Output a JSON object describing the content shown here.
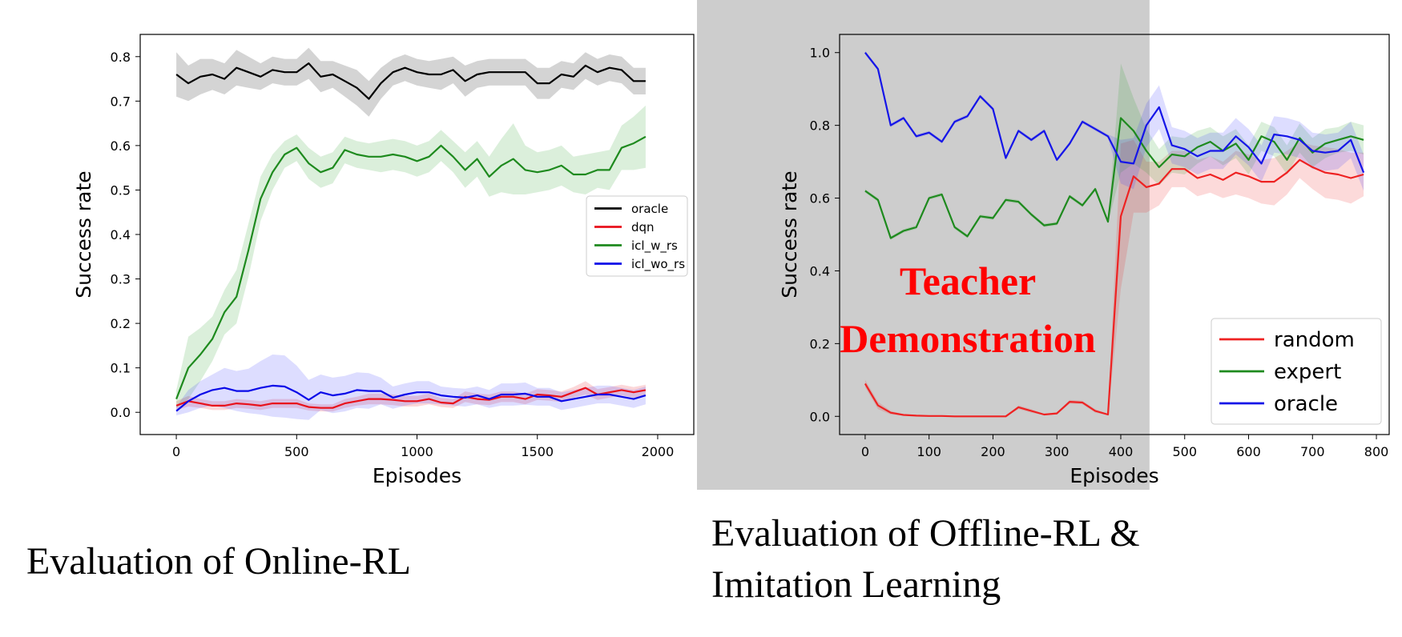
{
  "captions": {
    "left": "Evaluation of Online-RL",
    "right_line1": "Evaluation of Offline-RL &",
    "right_line2": "Imitation Learning"
  },
  "chart_data": [
    {
      "type": "line",
      "title": "",
      "xlabel": "Episodes",
      "ylabel": "Success rate",
      "xlim": [
        -150,
        2150
      ],
      "ylim": [
        -0.05,
        0.85
      ],
      "xticks": [
        0,
        500,
        1000,
        1500,
        2000
      ],
      "yticks": [
        0.0,
        0.1,
        0.2,
        0.3,
        0.4,
        0.5,
        0.6,
        0.7,
        0.8
      ],
      "tick_decimals": 1,
      "grid": false,
      "legend": "center-right",
      "legend_font_size": 15,
      "x": [
        0,
        50,
        100,
        150,
        200,
        250,
        300,
        350,
        400,
        450,
        500,
        550,
        600,
        650,
        700,
        750,
        800,
        850,
        900,
        950,
        1000,
        1050,
        1100,
        1150,
        1200,
        1250,
        1300,
        1350,
        1400,
        1450,
        1500,
        1550,
        1600,
        1650,
        1700,
        1750,
        1800,
        1850,
        1900,
        1950
      ],
      "series": [
        {
          "name": "oracle",
          "color": "#000000",
          "band_color": "#000000",
          "values": [
            0.76,
            0.74,
            0.755,
            0.76,
            0.75,
            0.775,
            0.765,
            0.755,
            0.77,
            0.765,
            0.765,
            0.785,
            0.755,
            0.76,
            0.745,
            0.73,
            0.705,
            0.74,
            0.765,
            0.775,
            0.765,
            0.76,
            0.76,
            0.77,
            0.745,
            0.76,
            0.765,
            0.765,
            0.765,
            0.765,
            0.74,
            0.74,
            0.76,
            0.755,
            0.78,
            0.765,
            0.775,
            0.77,
            0.745,
            0.745
          ],
          "spread": [
            0.05,
            0.04,
            0.04,
            0.035,
            0.035,
            0.04,
            0.035,
            0.03,
            0.03,
            0.03,
            0.03,
            0.035,
            0.035,
            0.03,
            0.035,
            0.04,
            0.04,
            0.035,
            0.03,
            0.03,
            0.03,
            0.03,
            0.035,
            0.03,
            0.035,
            0.03,
            0.03,
            0.03,
            0.03,
            0.03,
            0.035,
            0.035,
            0.03,
            0.03,
            0.03,
            0.03,
            0.03,
            0.03,
            0.03,
            0.03
          ]
        },
        {
          "name": "dqn",
          "color": "#e8111b",
          "band_color": "#e8111b",
          "values": [
            0.015,
            0.025,
            0.02,
            0.015,
            0.015,
            0.02,
            0.018,
            0.015,
            0.02,
            0.02,
            0.02,
            0.012,
            0.01,
            0.01,
            0.02,
            0.025,
            0.03,
            0.03,
            0.028,
            0.025,
            0.025,
            0.03,
            0.022,
            0.02,
            0.035,
            0.03,
            0.028,
            0.035,
            0.035,
            0.03,
            0.04,
            0.038,
            0.035,
            0.045,
            0.055,
            0.04,
            0.045,
            0.05,
            0.045,
            0.05
          ],
          "spread": [
            0.01,
            0.012,
            0.01,
            0.01,
            0.01,
            0.01,
            0.01,
            0.01,
            0.01,
            0.01,
            0.01,
            0.008,
            0.008,
            0.008,
            0.01,
            0.01,
            0.012,
            0.012,
            0.012,
            0.012,
            0.012,
            0.012,
            0.01,
            0.01,
            0.012,
            0.012,
            0.012,
            0.012,
            0.012,
            0.012,
            0.012,
            0.012,
            0.012,
            0.012,
            0.015,
            0.012,
            0.012,
            0.012,
            0.012,
            0.012
          ]
        },
        {
          "name": "icl_w_rs",
          "color": "#1e8a1e",
          "band_color": "#2ca02c",
          "values": [
            0.03,
            0.1,
            0.13,
            0.165,
            0.225,
            0.26,
            0.365,
            0.48,
            0.54,
            0.58,
            0.595,
            0.56,
            0.54,
            0.55,
            0.59,
            0.58,
            0.575,
            0.575,
            0.58,
            0.575,
            0.565,
            0.575,
            0.6,
            0.575,
            0.545,
            0.57,
            0.53,
            0.555,
            0.57,
            0.545,
            0.54,
            0.545,
            0.555,
            0.535,
            0.535,
            0.545,
            0.545,
            0.595,
            0.605,
            0.62
          ],
          "spread": [
            0.02,
            0.07,
            0.06,
            0.05,
            0.05,
            0.06,
            0.06,
            0.05,
            0.04,
            0.03,
            0.03,
            0.035,
            0.035,
            0.035,
            0.03,
            0.03,
            0.03,
            0.035,
            0.035,
            0.035,
            0.035,
            0.035,
            0.035,
            0.035,
            0.04,
            0.04,
            0.045,
            0.06,
            0.08,
            0.055,
            0.045,
            0.045,
            0.045,
            0.04,
            0.045,
            0.04,
            0.045,
            0.05,
            0.06,
            0.07
          ]
        },
        {
          "name": "icl_wo_rs",
          "color": "#0a0ae8",
          "band_color": "#3333ff",
          "values": [
            0.003,
            0.025,
            0.04,
            0.05,
            0.055,
            0.048,
            0.048,
            0.055,
            0.06,
            0.058,
            0.045,
            0.028,
            0.045,
            0.038,
            0.042,
            0.05,
            0.048,
            0.048,
            0.033,
            0.04,
            0.045,
            0.045,
            0.038,
            0.035,
            0.033,
            0.038,
            0.03,
            0.04,
            0.04,
            0.042,
            0.035,
            0.035,
            0.025,
            0.03,
            0.035,
            0.04,
            0.04,
            0.035,
            0.03,
            0.038
          ],
          "spread": [
            0.01,
            0.025,
            0.03,
            0.035,
            0.045,
            0.045,
            0.05,
            0.06,
            0.07,
            0.07,
            0.06,
            0.045,
            0.04,
            0.04,
            0.04,
            0.04,
            0.04,
            0.03,
            0.025,
            0.025,
            0.025,
            0.025,
            0.02,
            0.02,
            0.02,
            0.02,
            0.02,
            0.025,
            0.025,
            0.025,
            0.02,
            0.02,
            0.02,
            0.02,
            0.02,
            0.02,
            0.02,
            0.02,
            0.02,
            0.02
          ]
        }
      ]
    },
    {
      "type": "line",
      "title": "",
      "xlabel": "Episodes",
      "ylabel": "Success rate",
      "xlim": [
        -40,
        820
      ],
      "ylim": [
        -0.05,
        1.05
      ],
      "xticks": [
        0,
        100,
        200,
        300,
        400,
        500,
        600,
        700,
        800
      ],
      "yticks": [
        0.0,
        0.2,
        0.4,
        0.6,
        0.8,
        1.0
      ],
      "tick_decimals": 1,
      "grid": false,
      "legend": "bottom-right",
      "legend_font_size": 26,
      "annotation": {
        "text_line1": "Teacher",
        "text_line2": "Demonstration",
        "color": "#ff0000",
        "x_range": [
          -40,
          445
        ]
      },
      "x": [
        0,
        20,
        40,
        60,
        80,
        100,
        120,
        140,
        160,
        180,
        200,
        220,
        240,
        260,
        280,
        300,
        320,
        340,
        360,
        380,
        400,
        420,
        440,
        460,
        480,
        500,
        520,
        540,
        560,
        580,
        600,
        620,
        640,
        660,
        680,
        700,
        720,
        740,
        760,
        780
      ],
      "series": [
        {
          "name": "random",
          "color": "#ee2222",
          "band_color": "#ee2222",
          "values": [
            0.09,
            0.03,
            0.01,
            0.004,
            0.002,
            0.001,
            0.001,
            0.0,
            0.0,
            0.0,
            0.0,
            0.0,
            0.025,
            0.015,
            0.005,
            0.008,
            0.04,
            0.038,
            0.015,
            0.005,
            0.55,
            0.66,
            0.63,
            0.64,
            0.68,
            0.68,
            0.655,
            0.665,
            0.65,
            0.67,
            0.66,
            0.645,
            0.645,
            0.67,
            0.705,
            0.685,
            0.67,
            0.665,
            0.655,
            0.665
          ],
          "spread": [
            0.01,
            0.01,
            0.005,
            0.002,
            0.001,
            0.001,
            0.001,
            0.0,
            0.0,
            0.0,
            0.0,
            0.0,
            0.005,
            0.005,
            0.002,
            0.003,
            0.005,
            0.005,
            0.005,
            0.002,
            0.2,
            0.1,
            0.07,
            0.06,
            0.05,
            0.05,
            0.05,
            0.05,
            0.05,
            0.06,
            0.06,
            0.06,
            0.065,
            0.06,
            0.05,
            0.06,
            0.07,
            0.07,
            0.07,
            0.06
          ]
        },
        {
          "name": "expert",
          "color": "#1e8a1e",
          "band_color": "#2ca02c",
          "values": [
            0.62,
            0.595,
            0.49,
            0.51,
            0.52,
            0.6,
            0.61,
            0.52,
            0.495,
            0.55,
            0.545,
            0.595,
            0.59,
            0.555,
            0.525,
            0.53,
            0.605,
            0.58,
            0.625,
            0.535,
            0.82,
            0.785,
            0.73,
            0.685,
            0.72,
            0.715,
            0.74,
            0.755,
            0.73,
            0.75,
            0.705,
            0.77,
            0.755,
            0.705,
            0.765,
            0.725,
            0.75,
            0.76,
            0.77,
            0.76
          ],
          "spread": [
            0.005,
            0.005,
            0.005,
            0.005,
            0.005,
            0.005,
            0.005,
            0.005,
            0.005,
            0.005,
            0.005,
            0.005,
            0.005,
            0.005,
            0.005,
            0.005,
            0.005,
            0.005,
            0.005,
            0.005,
            0.15,
            0.09,
            0.06,
            0.05,
            0.05,
            0.05,
            0.045,
            0.04,
            0.04,
            0.04,
            0.04,
            0.04,
            0.04,
            0.04,
            0.04,
            0.04,
            0.04,
            0.035,
            0.04,
            0.04
          ]
        },
        {
          "name": "oracle",
          "color": "#1515e8",
          "band_color": "#3333ff",
          "values": [
            1.0,
            0.955,
            0.8,
            0.82,
            0.77,
            0.78,
            0.755,
            0.81,
            0.825,
            0.88,
            0.845,
            0.71,
            0.785,
            0.76,
            0.785,
            0.705,
            0.75,
            0.81,
            0.79,
            0.77,
            0.7,
            0.695,
            0.8,
            0.85,
            0.745,
            0.735,
            0.715,
            0.73,
            0.73,
            0.77,
            0.74,
            0.695,
            0.775,
            0.77,
            0.76,
            0.73,
            0.725,
            0.73,
            0.76,
            0.67
          ],
          "spread": [
            0.005,
            0.005,
            0.005,
            0.005,
            0.005,
            0.005,
            0.005,
            0.005,
            0.005,
            0.005,
            0.005,
            0.005,
            0.005,
            0.005,
            0.005,
            0.005,
            0.005,
            0.005,
            0.005,
            0.005,
            0.06,
            0.07,
            0.06,
            0.06,
            0.05,
            0.05,
            0.05,
            0.05,
            0.05,
            0.05,
            0.05,
            0.05,
            0.05,
            0.05,
            0.05,
            0.05,
            0.05,
            0.05,
            0.05,
            0.05
          ]
        }
      ]
    }
  ]
}
